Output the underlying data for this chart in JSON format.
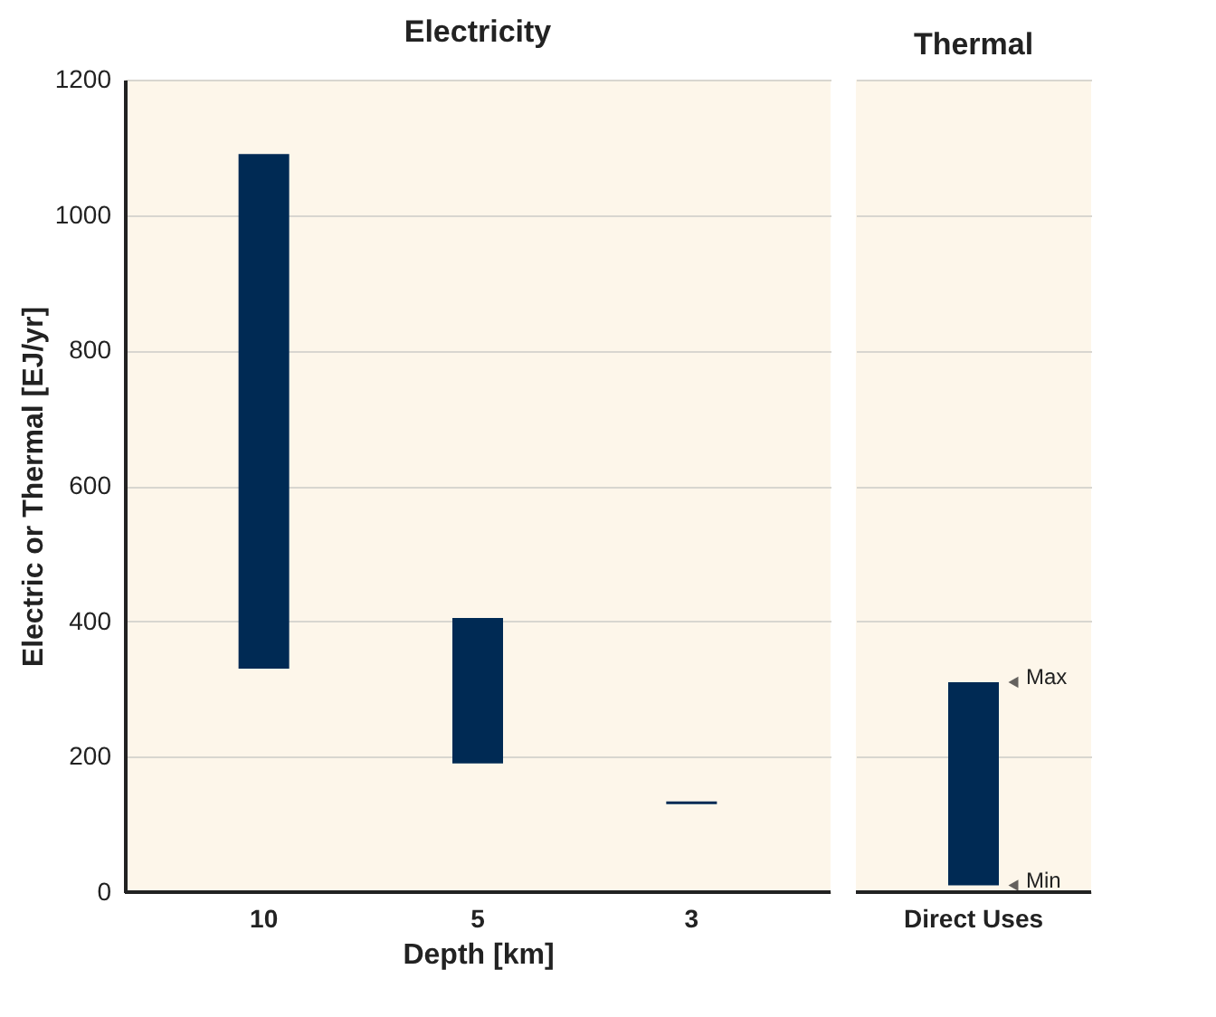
{
  "chart_data": [
    {
      "type": "bar",
      "title": "Electricity",
      "xlabel": "Depth [km]",
      "ylabel": "Electric or Thermal [EJ/yr]",
      "categories": [
        "10",
        "5",
        "3"
      ],
      "series": [
        {
          "color": "#002a54",
          "values": [
            760,
            215,
            4
          ],
          "base": [
            330,
            190,
            130
          ]
        }
      ],
      "ylim": [
        0,
        1200
      ],
      "yticks": [
        0,
        200,
        400,
        600,
        800,
        1000,
        1200
      ],
      "grid": "y"
    },
    {
      "type": "bar",
      "title": "Thermal",
      "categories": [
        "Direct Uses"
      ],
      "series": [
        {
          "color": "#002a54",
          "values": [
            300
          ],
          "base": [
            10
          ]
        }
      ],
      "ylim": [
        0,
        1200
      ],
      "yticks": [
        0,
        200,
        400,
        600,
        800,
        1000,
        1200
      ],
      "grid": "y",
      "tick_labels": "x",
      "annotations": [
        {
          "text": "Max",
          "x": "Direct Uses",
          "y": 310
        },
        {
          "text": "Min",
          "x": "Direct Uses",
          "y": 10
        }
      ]
    }
  ]
}
